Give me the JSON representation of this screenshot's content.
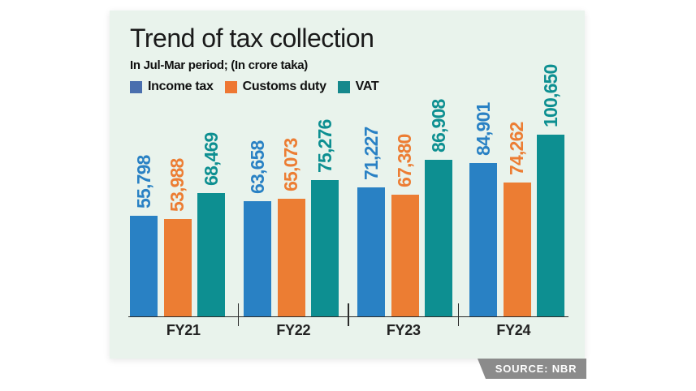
{
  "chart_data": {
    "type": "bar",
    "title": "Trend of tax collection",
    "subtitle": "In Jul-Mar period; (In crore taka)",
    "categories": [
      "FY21",
      "FY22",
      "FY23",
      "FY24"
    ],
    "series": [
      {
        "name": "Income tax",
        "color": "#2981c4",
        "legend_color": "#4a6fae",
        "values": [
          55798,
          63658,
          71227,
          84901
        ]
      },
      {
        "name": "Customs duty",
        "color": "#ec7d33",
        "legend_color": "#ee7733",
        "values": [
          53988,
          65073,
          67380,
          74262
        ]
      },
      {
        "name": "VAT",
        "color": "#0d8f91",
        "legend_color": "#15888c",
        "values": [
          68469,
          75276,
          86908,
          100650
        ]
      }
    ],
    "value_labels_rotated_degrees": 90,
    "ylim": [
      0,
      100650
    ],
    "grid": "off",
    "legend_position": "top-left",
    "value_label_format": "comma-thousands"
  },
  "source": {
    "label": "SOURCE: NBR",
    "badge_color": "#8b8b8b"
  },
  "panel": {
    "background": "#e9f3ec"
  }
}
